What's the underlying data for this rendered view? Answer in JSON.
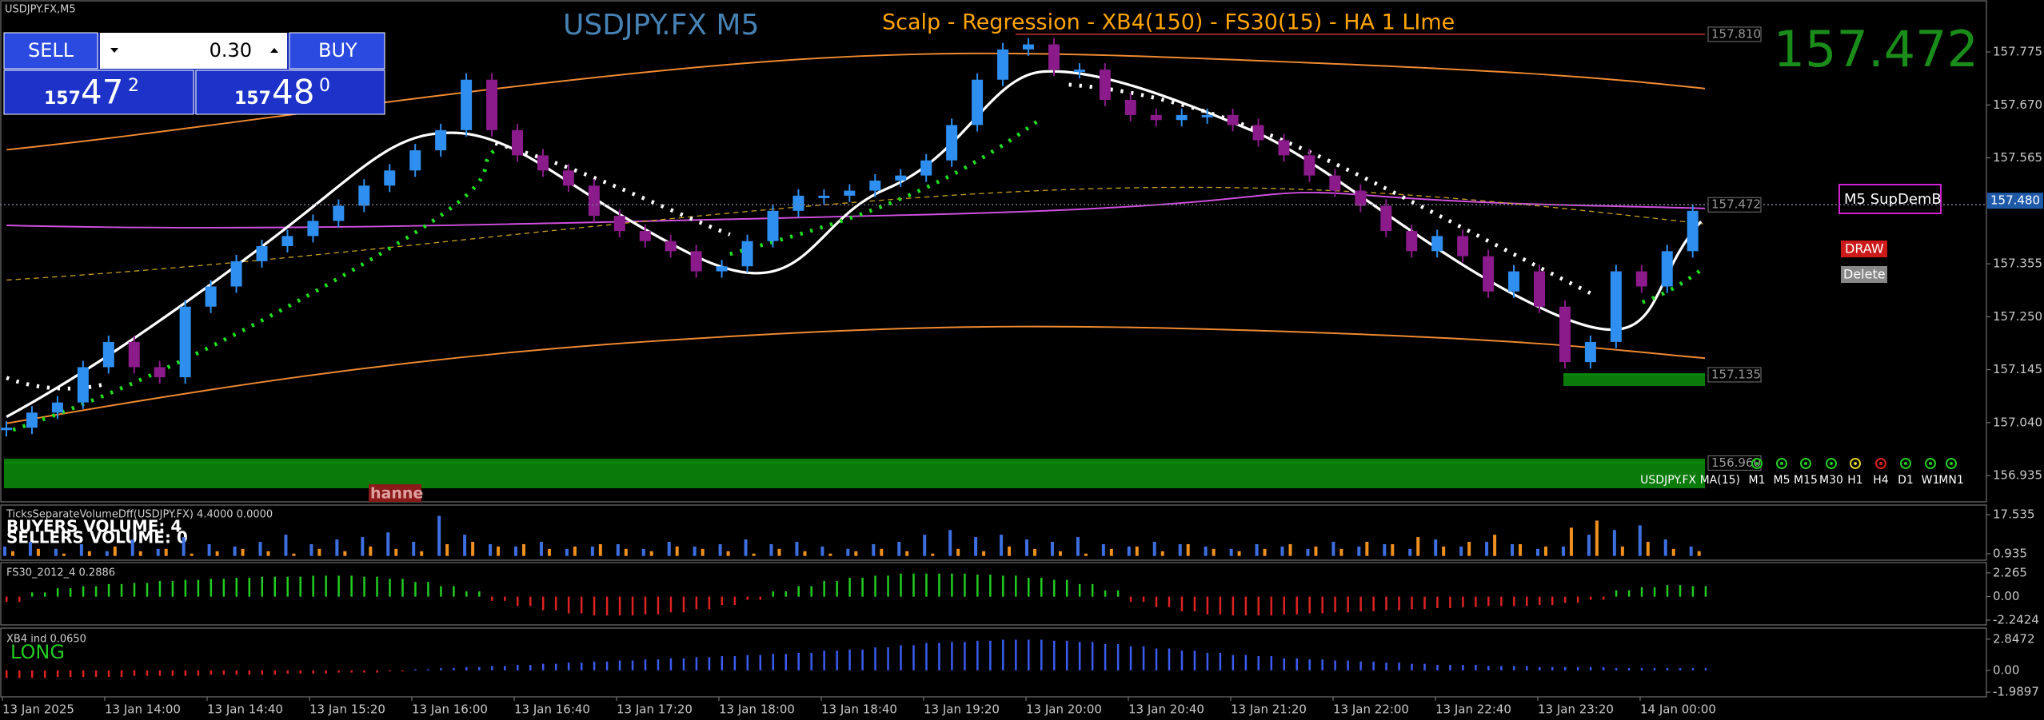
{
  "window": {
    "symbol_label": "USDJPY.FX,M5",
    "tag": "hanne"
  },
  "trade_panel": {
    "sell": "SELL",
    "buy": "BUY",
    "lot": "0.30",
    "sell_price": {
      "big": "157",
      "pips": "47",
      "frac": "2"
    },
    "buy_price": {
      "big": "157",
      "pips": "48",
      "frac": "0"
    }
  },
  "controls": {
    "supdem": "M5 SupDemB",
    "draw": "DRAW",
    "delete": "Delete",
    "ma_label": "USDJPY.FX MA(15)",
    "timeframes": [
      "M1",
      "M5",
      "M15",
      "M30",
      "H1",
      "H4",
      "D1",
      "W1",
      "MN1"
    ]
  },
  "time_axis": [
    "13 Jan 2025",
    "13 Jan 14:00",
    "13 Jan 14:40",
    "13 Jan 15:20",
    "13 Jan 16:00",
    "13 Jan 16:40",
    "13 Jan 17:20",
    "13 Jan 18:00",
    "13 Jan 18:40",
    "13 Jan 19:20",
    "13 Jan 20:00",
    "13 Jan 20:40",
    "13 Jan 21:20",
    "13 Jan 22:00",
    "13 Jan 22:40",
    "13 Jan 23:20",
    "14 Jan 00:00"
  ],
  "chart_data": [
    {
      "type": "candlestick",
      "title": "USDJPY.FX M5",
      "subtitle": "Scalp - Regression - XB4(150) - FS30(15) - HA  1 LIme",
      "up_color": "#2f8ff0",
      "down_color": "#8b1a8b",
      "values": [
        157.03,
        157.06,
        157.08,
        157.15,
        157.2,
        157.15,
        157.13,
        157.27,
        157.31,
        157.36,
        157.39,
        157.41,
        157.44,
        157.47,
        157.51,
        157.54,
        157.58,
        157.62,
        157.72,
        157.62,
        157.57,
        157.54,
        157.51,
        157.45,
        157.42,
        157.4,
        157.38,
        157.34,
        157.35,
        157.4,
        157.46,
        157.49,
        157.49,
        157.5,
        157.52,
        157.53,
        157.56,
        157.63,
        157.72,
        157.78,
        157.79,
        157.74,
        157.74,
        157.68,
        157.65,
        157.64,
        157.65,
        157.65,
        157.63,
        157.6,
        157.57,
        157.53,
        157.5,
        157.47,
        157.42,
        157.38,
        157.41,
        157.37,
        157.3,
        157.34,
        157.27,
        157.16,
        157.2,
        157.34,
        157.31,
        157.38,
        157.46
      ],
      "ylim": [
        156.883,
        157.878
      ],
      "yticks": [
        {
          "value": 157.775,
          "label": "157.775"
        },
        {
          "value": 157.67,
          "label": "157.670"
        },
        {
          "value": 157.565,
          "label": "157.565"
        },
        {
          "value": 157.355,
          "label": "157.355"
        },
        {
          "value": 157.25,
          "label": "157.250"
        },
        {
          "value": 157.145,
          "label": "157.145"
        },
        {
          "value": 157.04,
          "label": "157.040"
        },
        {
          "value": 156.935,
          "label": "156.935"
        }
      ],
      "levels": [
        {
          "value": 157.81,
          "label": "157.810"
        },
        {
          "value": 157.472,
          "label": "157.472"
        },
        {
          "value": 157.135,
          "label": "157.135"
        },
        {
          "value": 156.96,
          "label": "156.960"
        }
      ],
      "current_price": {
        "value": 157.472,
        "label": "157.472"
      },
      "bid": {
        "value": 157.48,
        "label": "157.480"
      }
    },
    {
      "type": "volume",
      "title": "TicksSeparateVolumeDff(USDJPY.FX) 4.4000 0.0000",
      "notes": [
        "BUYERS VOLUME: 4",
        "SELLERS VOLUME: 0"
      ],
      "ylim": [
        -1.8,
        21.6
      ],
      "yticks": [
        17.535,
        0.935
      ],
      "series": [
        {
          "name": "Buyers",
          "color": "#3d6fe0",
          "values": [
            4,
            6,
            3,
            5,
            2,
            7,
            3,
            8,
            5,
            4,
            6,
            9,
            5,
            7,
            8,
            10,
            6,
            17,
            9,
            5,
            4,
            6,
            3,
            4,
            5,
            3,
            6,
            4,
            5,
            7,
            5,
            6,
            4,
            3,
            5,
            6,
            9,
            11,
            8,
            9,
            7,
            6,
            8,
            5,
            4,
            6,
            5,
            4,
            3,
            5,
            4,
            3,
            6,
            4,
            5,
            3,
            7,
            4,
            6,
            5,
            3,
            4,
            9,
            11,
            13,
            7,
            4
          ]
        },
        {
          "name": "Sellers",
          "color": "#f0901e",
          "values": [
            2,
            3,
            1,
            2,
            4,
            2,
            3,
            1,
            2,
            3,
            2,
            1,
            3,
            2,
            4,
            3,
            2,
            5,
            6,
            4,
            5,
            3,
            4,
            5,
            3,
            2,
            4,
            3,
            2,
            1,
            3,
            2,
            1,
            2,
            3,
            2,
            1,
            3,
            2,
            4,
            3,
            2,
            1,
            3,
            4,
            2,
            5,
            3,
            2,
            3,
            5,
            4,
            3,
            6,
            5,
            8,
            4,
            6,
            9,
            5,
            4,
            12,
            15,
            4,
            6,
            3,
            2
          ]
        }
      ]
    },
    {
      "type": "histogram",
      "title": "FS30_2012_4 0.2886",
      "pos_color": "#22cc22",
      "neg_color": "#dd2222",
      "ylim": [
        -2.7,
        3.25
      ],
      "yticks": [
        2.265,
        {
          "value": 0,
          "label": "0.00"
        },
        -2.2424
      ],
      "values": [
        -0.5,
        0.4,
        0.8,
        1.0,
        1.2,
        1.3,
        1.5,
        1.6,
        1.7,
        1.8,
        1.9,
        1.9,
        2.0,
        2.0,
        1.9,
        1.7,
        1.4,
        1.0,
        0.5,
        -0.4,
        -0.9,
        -1.3,
        -1.6,
        -1.8,
        -1.8,
        -1.7,
        -1.5,
        -1.2,
        -0.8,
        -0.3,
        0.5,
        1.0,
        1.5,
        1.8,
        2.0,
        2.2,
        2.2,
        2.2,
        2.1,
        2.0,
        1.8,
        1.6,
        1.2,
        0.6,
        -0.5,
        -1.0,
        -1.4,
        -1.7,
        -1.8,
        -1.8,
        -1.7,
        -1.6,
        -1.5,
        -1.4,
        -1.3,
        -1.2,
        -1.1,
        -1.0,
        -0.9,
        -0.9,
        -0.8,
        -0.6,
        -0.3,
        0.6,
        0.9,
        1.1,
        1.0
      ]
    },
    {
      "type": "histogram",
      "title": "XB4 ind 0.0650",
      "note": "LONG",
      "pos_color": "#3a5cf0",
      "neg_color": "#dd2222",
      "ylim": [
        -2.42,
        3.86
      ],
      "yticks": [
        2.8472,
        {
          "value": 0,
          "label": "0.00"
        },
        -1.9897
      ],
      "values": [
        -0.7,
        -0.7,
        -0.6,
        -0.6,
        -0.6,
        -0.5,
        -0.5,
        -0.5,
        -0.4,
        -0.4,
        -0.4,
        -0.3,
        -0.3,
        -0.2,
        -0.2,
        -0.1,
        0.1,
        0.2,
        0.3,
        0.4,
        0.5,
        0.6,
        0.7,
        0.8,
        0.9,
        1.0,
        1.1,
        1.2,
        1.3,
        1.4,
        1.5,
        1.6,
        1.8,
        1.9,
        2.1,
        2.3,
        2.5,
        2.6,
        2.7,
        2.8,
        2.8,
        2.7,
        2.6,
        2.4,
        2.2,
        2.0,
        1.8,
        1.6,
        1.4,
        1.3,
        1.1,
        1.0,
        0.9,
        0.8,
        0.7,
        0.6,
        0.5,
        0.5,
        0.4,
        0.4,
        0.3,
        0.3,
        0.3,
        0.2,
        0.2,
        0.2,
        0.2
      ]
    }
  ]
}
